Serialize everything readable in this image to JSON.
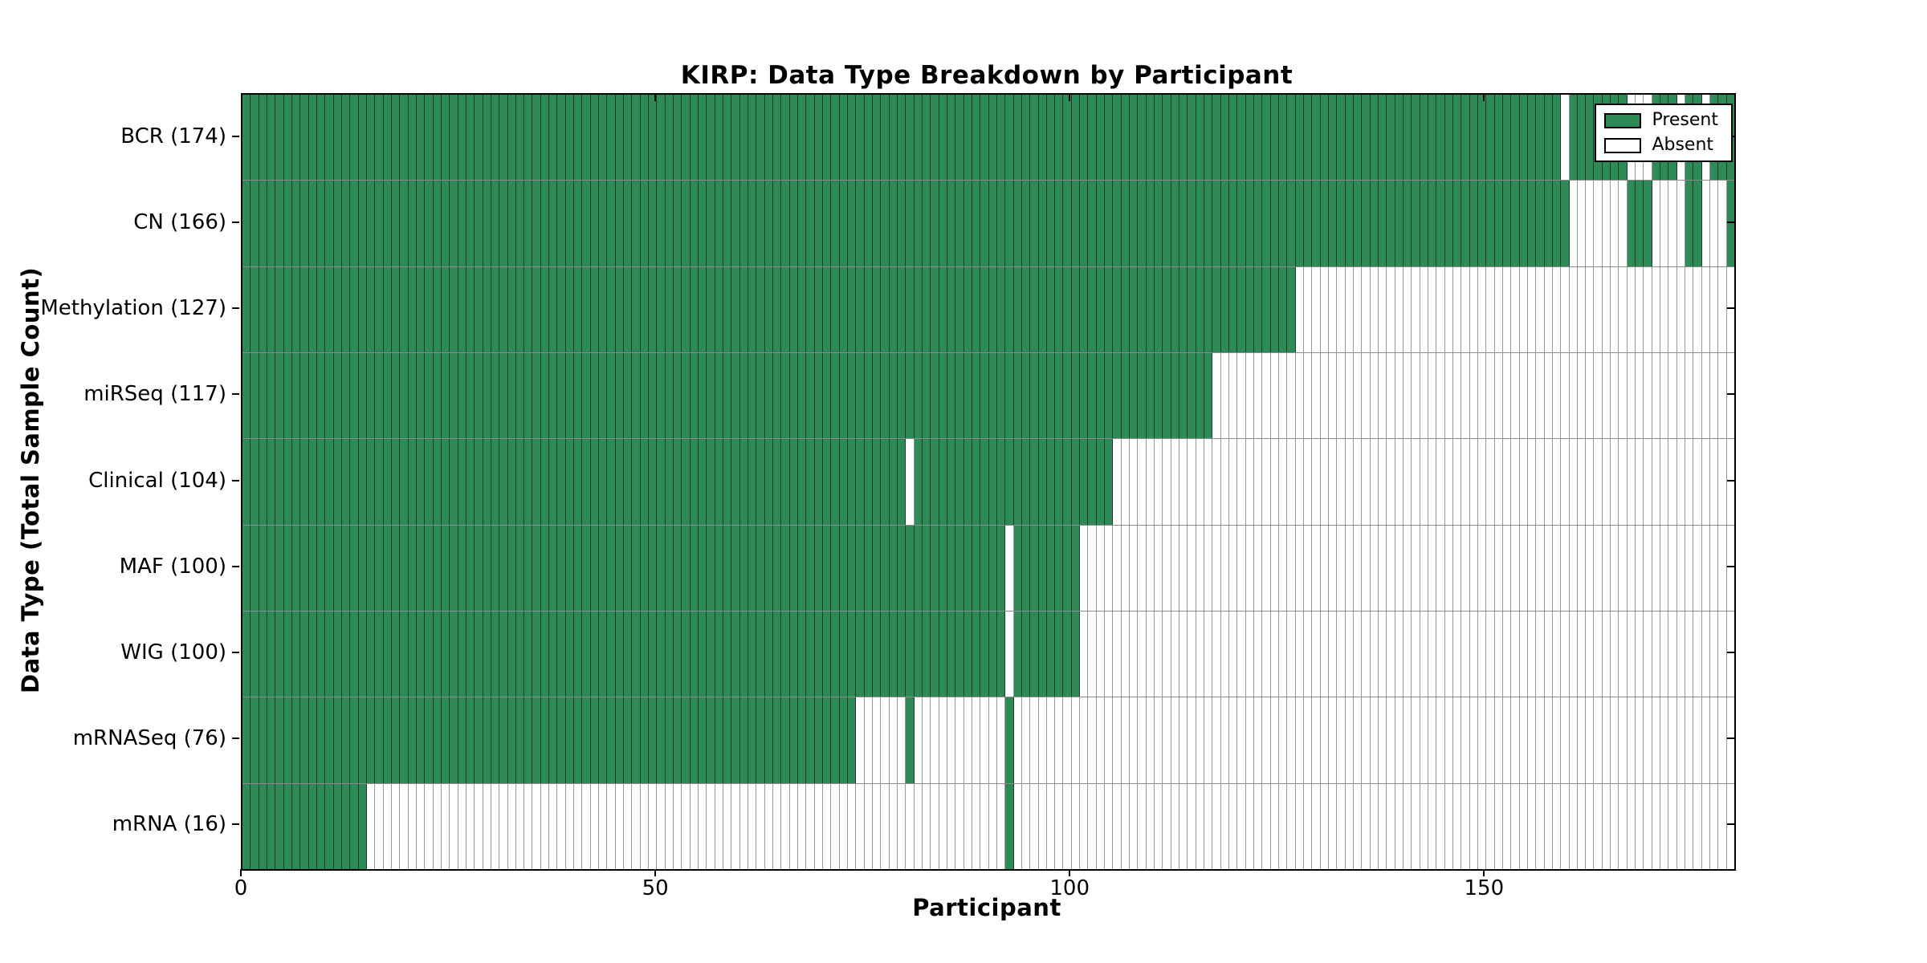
{
  "title": "KIRP: Data Type Breakdown by Participant",
  "chart_data": {
    "type": "heatmap",
    "title": "KIRP: Data Type Breakdown by Participant",
    "xlabel": "Participant",
    "ylabel": "Data Type (Total Sample Count)",
    "x_ticks": [
      0,
      50,
      100,
      150
    ],
    "xlim": [
      0,
      180
    ],
    "n_participants": 180,
    "grid": "cell-edges",
    "colors": {
      "present": "#2e8b57",
      "absent": "#ffffff",
      "cell_edge": "rgba(0,0,0,0.45)"
    },
    "legend": {
      "position": "upper right",
      "entries": [
        {
          "label": "Present",
          "color": "#2e8b57"
        },
        {
          "label": "Absent",
          "color": "#ffffff"
        }
      ]
    },
    "rows": [
      {
        "data_type": "BCR",
        "total_samples": 174,
        "label": "BCR (174)",
        "present_ranges": [
          [
            0,
            158
          ],
          [
            160,
            166
          ],
          [
            170,
            172
          ],
          [
            174,
            175
          ],
          [
            177,
            179
          ]
        ]
      },
      {
        "data_type": "CN",
        "total_samples": 166,
        "label": "CN (166)",
        "present_ranges": [
          [
            0,
            159
          ],
          [
            167,
            169
          ],
          [
            174,
            175
          ],
          [
            179,
            179
          ]
        ]
      },
      {
        "data_type": "Methylation",
        "total_samples": 127,
        "label": "Methylation (127)",
        "present_ranges": [
          [
            0,
            126
          ]
        ]
      },
      {
        "data_type": "miRSeq",
        "total_samples": 117,
        "label": "miRSeq (117)",
        "present_ranges": [
          [
            0,
            116
          ]
        ]
      },
      {
        "data_type": "Clinical",
        "total_samples": 104,
        "label": "Clinical (104)",
        "present_ranges": [
          [
            0,
            79
          ],
          [
            81,
            104
          ]
        ]
      },
      {
        "data_type": "MAF",
        "total_samples": 100,
        "label": "MAF (100)",
        "present_ranges": [
          [
            0,
            91
          ],
          [
            93,
            100
          ]
        ]
      },
      {
        "data_type": "WIG",
        "total_samples": 100,
        "label": "WIG (100)",
        "present_ranges": [
          [
            0,
            91
          ],
          [
            93,
            100
          ]
        ]
      },
      {
        "data_type": "mRNASeq",
        "total_samples": 76,
        "label": "mRNASeq (76)",
        "present_ranges": [
          [
            0,
            73
          ],
          [
            80,
            80
          ],
          [
            92,
            92
          ]
        ]
      },
      {
        "data_type": "mRNA",
        "total_samples": 16,
        "label": "mRNA (16)",
        "present_ranges": [
          [
            0,
            14
          ],
          [
            92,
            92
          ]
        ]
      }
    ]
  }
}
